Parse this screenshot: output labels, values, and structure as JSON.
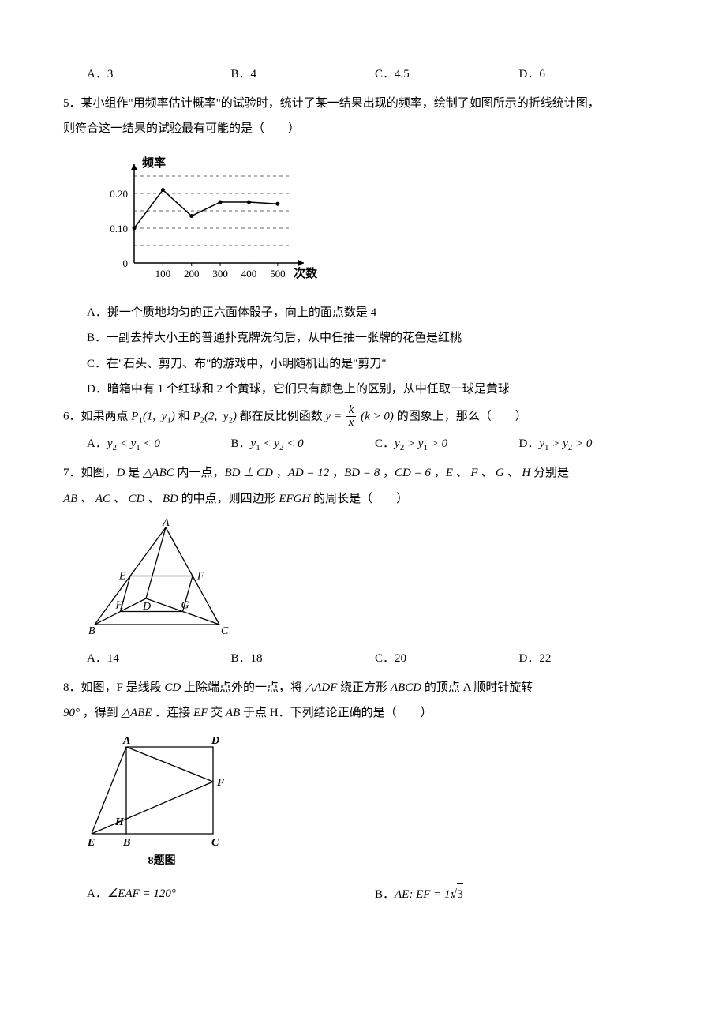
{
  "q4": {
    "options": {
      "a_label": "A．3",
      "b_label": "B．4",
      "c_label": "C．4.5",
      "d_label": "D．6"
    }
  },
  "q5": {
    "text_line1": "5．某小组作\"用频率估计概率\"的试验时，统计了某一结果出现的频率，绘制了如图所示的折线统计图，",
    "text_line2": "则符合这一结果的试验最有可能的是（　　）",
    "chart": {
      "y_label": "频率",
      "x_label": "次数",
      "x_ticks": [
        "100",
        "200",
        "300",
        "400",
        "500"
      ],
      "y_ticks_major": [
        0.1,
        0.2
      ],
      "y_zero": "0",
      "y_label_10": "0.10",
      "y_label_20": "0.20",
      "series_values": [
        0.1,
        0.21,
        0.135,
        0.175,
        0.175,
        0.17
      ],
      "axis_color": "#000000",
      "grid_color": "#666666",
      "line_color": "#000000",
      "background": "#ffffff"
    },
    "opt_a": "A．掷一个质地均匀的正六面体骰子，向上的面点数是 4",
    "opt_b": "B．一副去掉大小王的普通扑克牌洗匀后，从中任抽一张牌的花色是红桃",
    "opt_c": "C．在\"石头、剪刀、布\"的游戏中，小明随机出的是\"剪刀\"",
    "opt_d": "D．暗箱中有 1 个红球和 2 个黄球，它们只有颜色上的区别，从中任取一球是黄球"
  },
  "q6": {
    "prefix": "6．如果两点",
    "p1": "P",
    "p1_args": "(1,  y",
    "p2": "P",
    "p2_args": "(2,  y",
    "mid": " 和 ",
    "mid2": " 都在反比例函数 ",
    "y_eq": "y = ",
    "frac_num": "k",
    "frac_den": "x",
    "cond": "(k > 0)",
    "post": " 的图象上，那么（　　）",
    "opt_a_pre": "A．",
    "opt_a_m": "y₂ < y₁ < 0",
    "opt_b_pre": "B．",
    "opt_b_m": "y₁ < y₂ < 0",
    "opt_c_pre": "C．",
    "opt_c_m": "y₂ > y₁ > 0",
    "opt_d_pre": "D．",
    "opt_d_m": "y₁ > y₂ > 0"
  },
  "q7": {
    "line1_a": "7．如图，",
    "line1_b": "D",
    "line1_c": " 是 ",
    "line1_tr": "△ABC",
    "line1_d": " 内一点，",
    "line1_e": "BD ⊥ CD",
    "line1_f": " ，",
    "line1_g": "AD = 12",
    "line1_h": " ，",
    "line1_i": "BD = 8",
    "line1_j": " ，",
    "line1_k": "CD = 6",
    "line1_l": " ，",
    "line1_m": "E 、 F 、 G 、 H",
    "line1_n": " 分别是",
    "line2_a": "AB 、 AC 、 CD 、 BD",
    "line2_b": " 的中点，则四边形 ",
    "line2_c": "EFGH",
    "line2_d": " 的周长是（　　）",
    "labels": {
      "A": "A",
      "B": "B",
      "C": "C",
      "D": "D",
      "E": "E",
      "F": "F",
      "G": "G",
      "H": "H"
    },
    "opt_a": "A．14",
    "opt_b": "B．18",
    "opt_c": "C．20",
    "opt_d": "D．22"
  },
  "q8": {
    "line1_a": "8．如图，F 是线段 ",
    "line1_b": "CD",
    "line1_c": " 上除端点外的一点，将 ",
    "line1_d": "△ADF",
    "line1_e": " 绕正方形 ",
    "line1_f": "ABCD",
    "line1_g": " 的顶点 A 顺时针旋转",
    "line2_a": "90°",
    "line2_b": " ，得到 ",
    "line2_c": "△ABE",
    "line2_d": " ．连接 ",
    "line2_e": "EF",
    "line2_f": " 交 ",
    "line2_g": "AB",
    "line2_h": " 于点 H．下列结论正确的是（　　）",
    "labels": {
      "A": "A",
      "B": "B",
      "C": "C",
      "D": "D",
      "E": "E",
      "F": "F",
      "H": "H"
    },
    "caption": "8题图",
    "opt_a_pre": "A．",
    "opt_a_m": "∠EAF = 120°",
    "opt_b_pre": "B．",
    "opt_b_m": "AE:  EF = 1: ",
    "opt_b_root": "3"
  }
}
